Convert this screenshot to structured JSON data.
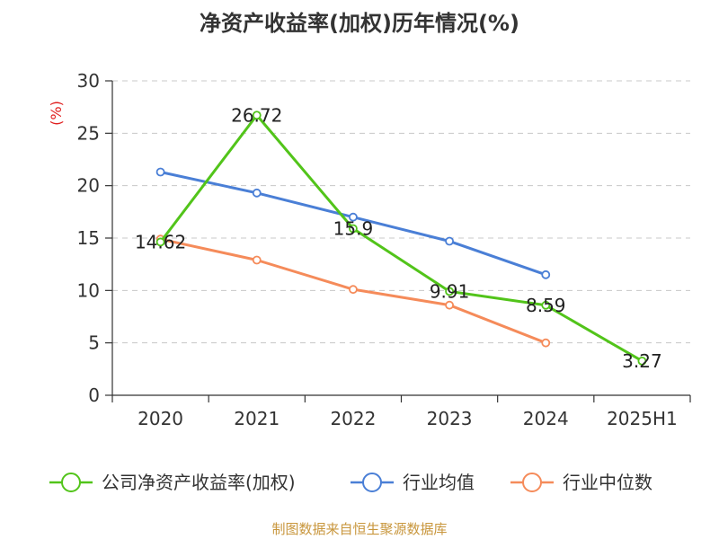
{
  "colors": {
    "company": "#52c41a",
    "industry_avg": "#4a7fd6",
    "industry_median": "#f58b5a",
    "axis": "#333333",
    "grid": "#c8c8c8",
    "unit": "#e02020",
    "source": "#c8963c"
  },
  "chart_data": {
    "type": "line",
    "title": "净资产收益率(加权)历年情况(%)",
    "ylabel": "(%)",
    "xlabel": "",
    "categories": [
      "2020",
      "2021",
      "2022",
      "2023",
      "2024",
      "2025H1"
    ],
    "ylim": [
      0,
      30
    ],
    "yticks": [
      "0",
      "5",
      "10",
      "15",
      "20",
      "25",
      "30"
    ],
    "grid": true,
    "legend_position": "bottom",
    "series": [
      {
        "name": "公司净资产收益率(加权)",
        "color_key": "company",
        "values": [
          14.62,
          26.72,
          15.9,
          9.91,
          8.59,
          3.27
        ],
        "data_labels": [
          "14.62",
          "26.72",
          "15.9",
          "9.91",
          "8.59",
          "3.27"
        ]
      },
      {
        "name": "行业均值",
        "color_key": "industry_avg",
        "values": [
          21.3,
          19.3,
          17.0,
          14.7,
          11.5,
          null
        ]
      },
      {
        "name": "行业中位数",
        "color_key": "industry_median",
        "values": [
          14.9,
          12.9,
          10.1,
          8.6,
          5.0,
          null
        ]
      }
    ]
  },
  "source": "制图数据来自恒生聚源数据库"
}
